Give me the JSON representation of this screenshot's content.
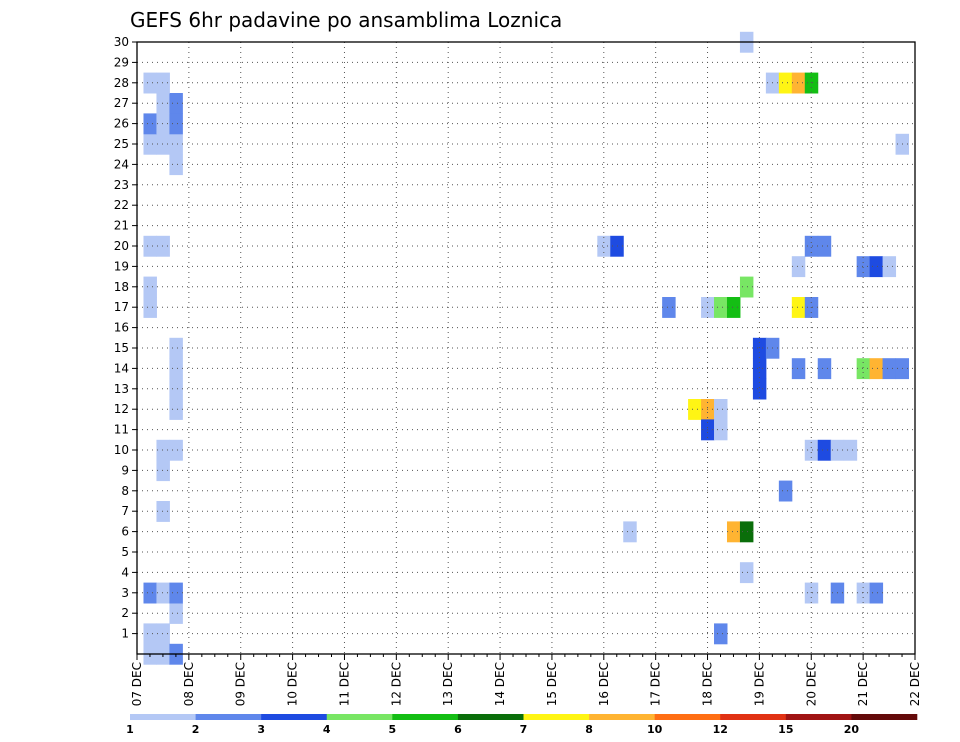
{
  "chart_data": {
    "type": "heatmap",
    "title": "GEFS 6hr padavine po ansamblima Loznica",
    "xlabel": "",
    "ylabel": "",
    "ensemble_members": [
      1,
      2,
      3,
      4,
      5,
      6,
      7,
      8,
      9,
      10,
      11,
      12,
      13,
      14,
      15,
      16,
      17,
      18,
      19,
      20,
      21,
      22,
      23,
      24,
      25,
      26,
      27,
      28,
      29,
      30
    ],
    "date_labels": [
      "07 DEC",
      "08 DEC",
      "09 DEC",
      "10 DEC",
      "11 DEC",
      "12 DEC",
      "13 DEC",
      "14 DEC",
      "15 DEC",
      "16 DEC",
      "17 DEC",
      "18 DEC",
      "19 DEC",
      "20 DEC",
      "21 DEC",
      "22 DEC"
    ],
    "x_unit": "days since 07 DEC 00Z (6-hour steps)",
    "xlim": [
      0,
      15
    ],
    "ylim": [
      0,
      30
    ],
    "legend": {
      "thresholds": [
        "1",
        "2",
        "3",
        "4",
        "5",
        "6",
        "7",
        "8",
        "10",
        "12",
        "15",
        "20"
      ],
      "colors": [
        "#b4c8f5",
        "#5f87eb",
        "#1e4be1",
        "#78e664",
        "#14be14",
        "#0a6e0a",
        "#fff514",
        "#ffb432",
        "#ff6e14",
        "#e13214",
        "#a01414",
        "#640a0a"
      ]
    },
    "cells": [
      {
        "t": 0.25,
        "m": 0,
        "c": 1
      },
      {
        "t": 0.5,
        "m": 0,
        "c": 1
      },
      {
        "t": 0.25,
        "m": 1,
        "c": 1
      },
      {
        "t": 0.5,
        "m": 1,
        "c": 1
      },
      {
        "t": 0.75,
        "m": 0,
        "c": 2
      },
      {
        "t": 0.75,
        "m": 2,
        "c": 1
      },
      {
        "t": 0.25,
        "m": 3,
        "c": 2
      },
      {
        "t": 0.5,
        "m": 3,
        "c": 1
      },
      {
        "t": 0.75,
        "m": 3,
        "c": 2
      },
      {
        "t": 0.5,
        "m": 7,
        "c": 1
      },
      {
        "t": 0.5,
        "m": 9,
        "c": 1
      },
      {
        "t": 0.5,
        "m": 10,
        "c": 1
      },
      {
        "t": 0.75,
        "m": 10,
        "c": 1
      },
      {
        "t": 0.75,
        "m": 12,
        "c": 1
      },
      {
        "t": 0.75,
        "m": 13,
        "c": 1
      },
      {
        "t": 0.75,
        "m": 14,
        "c": 1
      },
      {
        "t": 0.75,
        "m": 15,
        "c": 1
      },
      {
        "t": 0.25,
        "m": 17,
        "c": 1
      },
      {
        "t": 0.25,
        "m": 18,
        "c": 1
      },
      {
        "t": 0.25,
        "m": 20,
        "c": 1
      },
      {
        "t": 0.5,
        "m": 20,
        "c": 1
      },
      {
        "t": 0.75,
        "m": 24,
        "c": 1
      },
      {
        "t": 0.25,
        "m": 25,
        "c": 1
      },
      {
        "t": 0.5,
        "m": 25,
        "c": 1
      },
      {
        "t": 0.75,
        "m": 25,
        "c": 1
      },
      {
        "t": 0.25,
        "m": 26,
        "c": 2
      },
      {
        "t": 0.5,
        "m": 26,
        "c": 1
      },
      {
        "t": 0.75,
        "m": 26,
        "c": 2
      },
      {
        "t": 0.5,
        "m": 27,
        "c": 1
      },
      {
        "t": 0.75,
        "m": 27,
        "c": 2
      },
      {
        "t": 0.25,
        "m": 28,
        "c": 1
      },
      {
        "t": 0.5,
        "m": 28,
        "c": 1
      },
      {
        "t": 9.0,
        "m": 20,
        "c": 1
      },
      {
        "t": 9.25,
        "m": 20,
        "c": 3
      },
      {
        "t": 9.5,
        "m": 6,
        "c": 1
      },
      {
        "t": 10.25,
        "m": 17,
        "c": 2
      },
      {
        "t": 10.75,
        "m": 12,
        "c": 7
      },
      {
        "t": 11.0,
        "m": 12,
        "c": 8
      },
      {
        "t": 11.25,
        "m": 12,
        "c": 1
      },
      {
        "t": 11.0,
        "m": 11,
        "c": 3
      },
      {
        "t": 11.25,
        "m": 11,
        "c": 1
      },
      {
        "t": 11.25,
        "m": 1,
        "c": 2
      },
      {
        "t": 11.0,
        "m": 17,
        "c": 1
      },
      {
        "t": 11.25,
        "m": 17,
        "c": 4
      },
      {
        "t": 11.5,
        "m": 17,
        "c": 5
      },
      {
        "t": 11.5,
        "m": 6,
        "c": 8
      },
      {
        "t": 11.75,
        "m": 6,
        "c": 6
      },
      {
        "t": 11.75,
        "m": 4,
        "c": 1
      },
      {
        "t": 11.75,
        "m": 18,
        "c": 4
      },
      {
        "t": 11.75,
        "m": 30,
        "c": 1
      },
      {
        "t": 12.0,
        "m": 14,
        "c": 3
      },
      {
        "t": 12.0,
        "m": 15,
        "c": 3
      },
      {
        "t": 12.25,
        "m": 15,
        "c": 2
      },
      {
        "t": 12.0,
        "m": 13,
        "c": 3
      },
      {
        "t": 12.25,
        "m": 28,
        "c": 1
      },
      {
        "t": 12.5,
        "m": 28,
        "c": 7
      },
      {
        "t": 12.75,
        "m": 28,
        "c": 8
      },
      {
        "t": 13.0,
        "m": 28,
        "c": 5
      },
      {
        "t": 12.5,
        "m": 8,
        "c": 2
      },
      {
        "t": 12.75,
        "m": 19,
        "c": 1
      },
      {
        "t": 12.75,
        "m": 17,
        "c": 7
      },
      {
        "t": 13.0,
        "m": 17,
        "c": 2
      },
      {
        "t": 12.75,
        "m": 14,
        "c": 2
      },
      {
        "t": 13.0,
        "m": 20,
        "c": 2
      },
      {
        "t": 13.25,
        "m": 20,
        "c": 2
      },
      {
        "t": 13.25,
        "m": 14,
        "c": 2
      },
      {
        "t": 13.0,
        "m": 10,
        "c": 1
      },
      {
        "t": 13.25,
        "m": 10,
        "c": 3
      },
      {
        "t": 13.5,
        "m": 10,
        "c": 1
      },
      {
        "t": 13.75,
        "m": 10,
        "c": 1
      },
      {
        "t": 13.0,
        "m": 3,
        "c": 1
      },
      {
        "t": 13.5,
        "m": 3,
        "c": 2
      },
      {
        "t": 14.0,
        "m": 3,
        "c": 1
      },
      {
        "t": 14.25,
        "m": 3,
        "c": 2
      },
      {
        "t": 14.0,
        "m": 19,
        "c": 2
      },
      {
        "t": 14.25,
        "m": 19,
        "c": 3
      },
      {
        "t": 14.5,
        "m": 19,
        "c": 1
      },
      {
        "t": 14.0,
        "m": 14,
        "c": 4
      },
      {
        "t": 14.25,
        "m": 14,
        "c": 8
      },
      {
        "t": 14.5,
        "m": 14,
        "c": 2
      },
      {
        "t": 14.75,
        "m": 14,
        "c": 2
      },
      {
        "t": 14.75,
        "m": 25,
        "c": 1
      }
    ]
  }
}
